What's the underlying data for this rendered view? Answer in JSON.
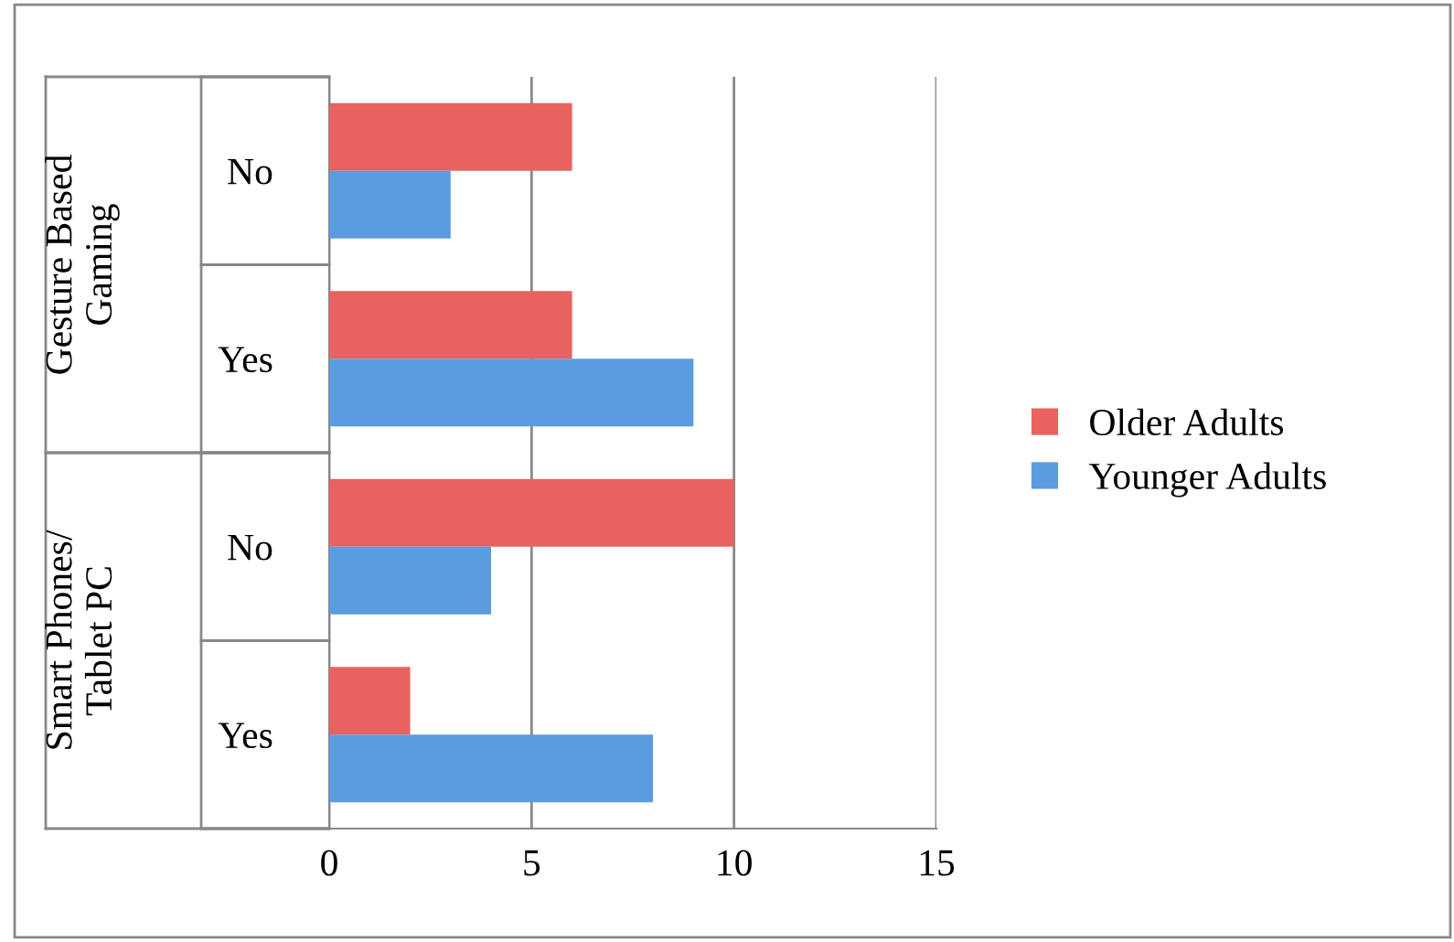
{
  "chart_data": {
    "type": "bar",
    "orientation": "horizontal",
    "categories": [
      "No",
      "Yes",
      "No",
      "Yes"
    ],
    "series": [
      {
        "name": "Older Adults",
        "color": "#e8625f",
        "values": [
          6,
          6,
          10,
          2
        ]
      },
      {
        "name": "Younger Adults",
        "color": "#5b9be0",
        "values": [
          3,
          9,
          4,
          8
        ]
      }
    ],
    "annotations": [
      "Gesture Based Gaming",
      "Smart Phones/ Tablet PC"
    ],
    "xlim": [
      0,
      15
    ],
    "xticks": [
      0,
      5,
      10,
      15
    ],
    "grid": "x",
    "legend": "right"
  }
}
